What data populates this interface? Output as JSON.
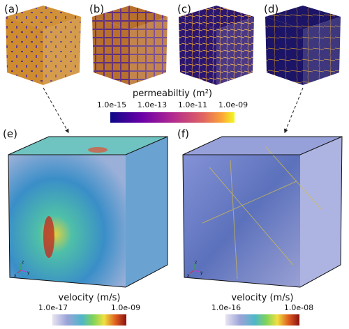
{
  "panels": [
    {
      "label": "(a)"
    },
    {
      "label": "(b)"
    },
    {
      "label": "(c)"
    },
    {
      "label": "(d)"
    },
    {
      "label": "(e)"
    },
    {
      "label": "(f)"
    }
  ],
  "permeability_colorbar": {
    "title": "permeabiltiy (m²)",
    "ticks": [
      "1.0e-15",
      "1.0e-13",
      "1.0e-11",
      "1.0e-09"
    ]
  },
  "velocity_colorbars": [
    {
      "title": "velocity (m/s)",
      "ticks": [
        "1.0e-17",
        "1.0e-09"
      ]
    },
    {
      "title": "velocity (m/s)",
      "ticks": [
        "1.0e-16",
        "1.0e-08"
      ]
    }
  ],
  "axes_triads": [
    {
      "z": "z",
      "x": "x",
      "y": "y"
    },
    {
      "z": "z",
      "x": "x",
      "y": "y"
    }
  ]
}
